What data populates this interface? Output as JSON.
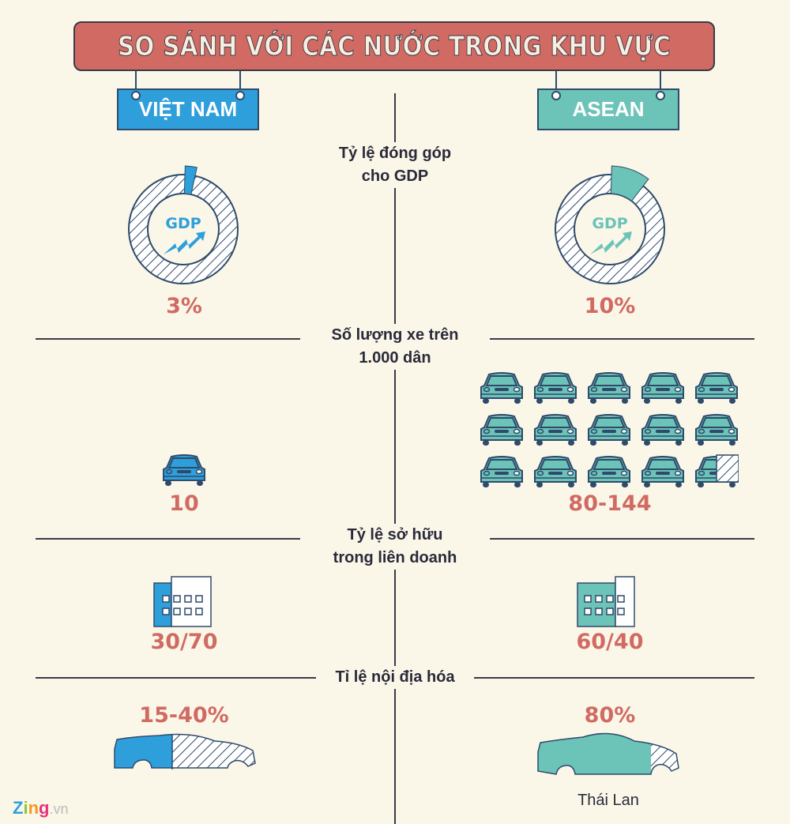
{
  "title": "SO SÁNH VỚI CÁC NƯỚC TRONG KHU VỰC",
  "columns": {
    "left": "VIỆT NAM",
    "right": "ASEAN"
  },
  "colors": {
    "vietnam": "#2f9fdb",
    "asean": "#6cc3b8",
    "accent": "#d16a62",
    "background": "#faf7e9",
    "outline": "#2f4a6a"
  },
  "sections": [
    {
      "title_line1": "Tỷ lệ đóng góp",
      "title_line2": "cho GDP",
      "icon": "gdp-donut-icon",
      "donut_label": "GDP",
      "left_value": "3%",
      "right_value": "10%",
      "left_fraction": 0.03,
      "right_fraction": 0.1
    },
    {
      "title_line1": "Số lượng xe trên",
      "title_line2": "1.000 dân",
      "icon": "car-front-icon",
      "left_value": "10",
      "right_value": "80-144",
      "left_cars": 1,
      "right_cars": 14.5
    },
    {
      "title_line1": "Tỷ lệ sở hữu",
      "title_line2": "trong liên doanh",
      "icon": "building-icon",
      "left_value": "30/70",
      "right_value": "60/40"
    },
    {
      "title_line1": "Tỉ lệ nội địa hóa",
      "icon": "car-side-icon",
      "left_value": "15-40%",
      "right_value": "80%",
      "right_note": "Thái Lan"
    }
  ],
  "logo": {
    "brand": "Zing",
    "suffix": ".vn"
  }
}
